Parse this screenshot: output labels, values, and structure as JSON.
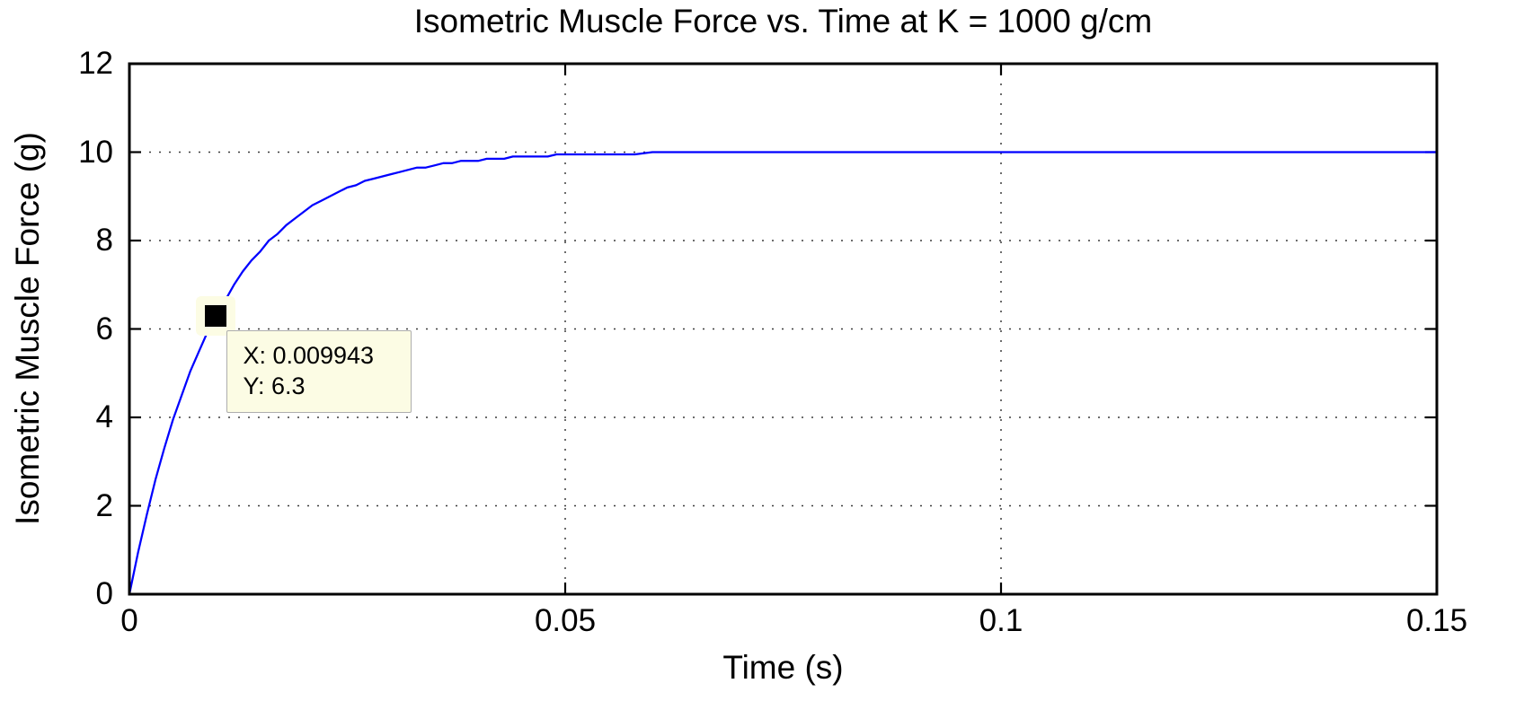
{
  "chart_data": {
    "type": "line",
    "title": "Isometric Muscle Force vs. Time at K = 1000 g/cm",
    "xlabel": "Time (s)",
    "ylabel": "Isometric Muscle Force (g)",
    "xlim": [
      0,
      0.15
    ],
    "ylim": [
      0,
      12
    ],
    "xticks": {
      "values": [
        0,
        0.05,
        0.1,
        0.15
      ],
      "labels": [
        "0",
        "0.05",
        "0.1",
        "0.15"
      ]
    },
    "yticks": {
      "values": [
        0,
        2,
        4,
        6,
        8,
        10,
        12
      ],
      "labels": [
        "0",
        "2",
        "4",
        "6",
        "8",
        "10",
        "12"
      ]
    },
    "grid": true,
    "grid_style": "dotted",
    "legend_position": "none",
    "colors": {
      "axis": "#000000",
      "grid": "#3c3c3c",
      "background": "#ffffff"
    },
    "series": [
      {
        "name": "isometric muscle force",
        "color": "#0000ff",
        "points": [
          [
            0,
            0
          ],
          [
            0.001,
            0.952
          ],
          [
            0.002,
            1.813
          ],
          [
            0.003,
            2.592
          ],
          [
            0.004,
            3.297
          ],
          [
            0.005,
            3.935
          ],
          [
            0.006,
            4.512
          ],
          [
            0.007,
            5.034
          ],
          [
            0.008,
            5.507
          ],
          [
            0.009,
            5.934
          ],
          [
            0.01,
            6.321
          ],
          [
            0.011,
            6.671
          ],
          [
            0.012,
            6.988
          ],
          [
            0.013,
            7.275
          ],
          [
            0.014,
            7.534
          ],
          [
            0.015,
            7.769
          ],
          [
            0.016,
            7.981
          ],
          [
            0.017,
            8.173
          ],
          [
            0.018,
            8.347
          ],
          [
            0.019,
            8.504
          ],
          [
            0.02,
            8.647
          ],
          [
            0.021,
            8.775
          ],
          [
            0.022,
            8.892
          ],
          [
            0.023,
            8.997
          ],
          [
            0.024,
            9.093
          ],
          [
            0.025,
            9.179
          ],
          [
            0.026,
            9.257
          ],
          [
            0.027,
            9.328
          ],
          [
            0.028,
            9.392
          ],
          [
            0.029,
            9.45
          ],
          [
            0.03,
            9.502
          ],
          [
            0.031,
            9.55
          ],
          [
            0.032,
            9.592
          ],
          [
            0.033,
            9.631
          ],
          [
            0.034,
            9.666
          ],
          [
            0.035,
            9.698
          ],
          [
            0.036,
            9.727
          ],
          [
            0.037,
            9.753
          ],
          [
            0.038,
            9.776
          ],
          [
            0.039,
            9.798
          ],
          [
            0.04,
            9.817
          ],
          [
            0.041,
            9.834
          ],
          [
            0.042,
            9.85
          ],
          [
            0.043,
            9.864
          ],
          [
            0.044,
            9.877
          ],
          [
            0.045,
            9.889
          ],
          [
            0.046,
            9.899
          ],
          [
            0.047,
            9.909
          ],
          [
            0.048,
            9.918
          ],
          [
            0.049,
            9.926
          ],
          [
            0.05,
            9.933
          ],
          [
            0.052,
            9.945
          ],
          [
            0.054,
            9.955
          ],
          [
            0.056,
            9.963
          ],
          [
            0.058,
            9.97
          ],
          [
            0.06,
            9.975
          ],
          [
            0.062,
            9.98
          ],
          [
            0.065,
            9.985
          ],
          [
            0.07,
            9.991
          ],
          [
            0.075,
            9.994
          ],
          [
            0.08,
            9.997
          ],
          [
            0.09,
            9.999
          ],
          [
            0.1,
            10
          ],
          [
            0.11,
            10
          ],
          [
            0.12,
            10
          ],
          [
            0.13,
            10
          ],
          [
            0.14,
            10
          ],
          [
            0.15,
            10
          ]
        ]
      }
    ],
    "datatip": {
      "x": 0.009943,
      "y": 6.3,
      "x_label": "X: 0.009943",
      "y_label": "Y: 6.3",
      "marker_color": "#000000",
      "box_color": "#fcfce4",
      "border_color": "#adadad"
    }
  }
}
